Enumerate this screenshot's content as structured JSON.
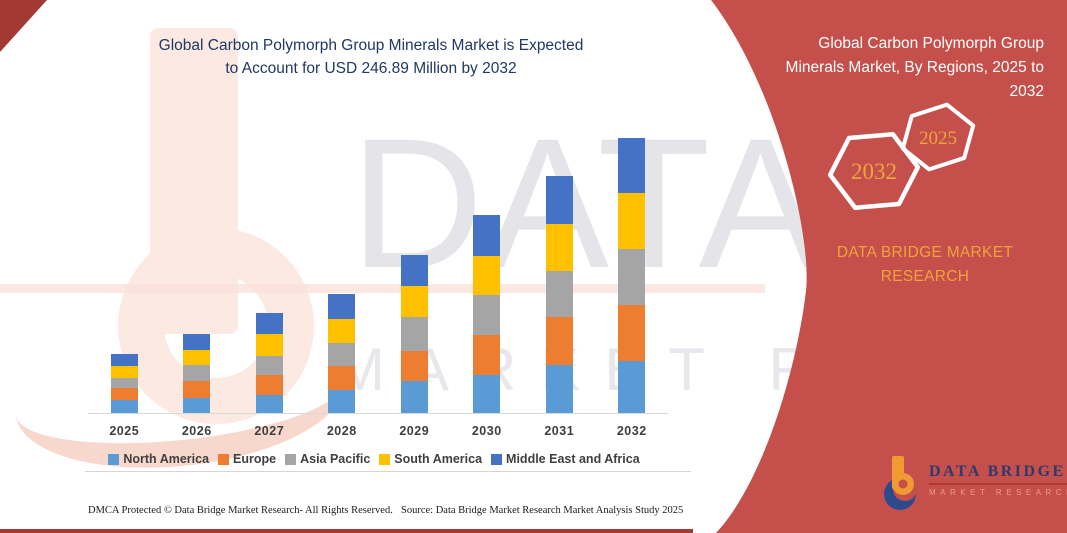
{
  "title": {
    "line1": "Global Carbon Polymorph Group Minerals Market is Expected",
    "line2": "to Account for USD 246.89 Million by 2032",
    "color": "#1F3864"
  },
  "chart_data": {
    "type": "bar",
    "stacked": true,
    "unit": "USD Million",
    "categories": [
      "2025",
      "2026",
      "2027",
      "2028",
      "2029",
      "2030",
      "2031",
      "2032"
    ],
    "series": [
      {
        "name": "North America",
        "color": "#5B9BD5",
        "values": [
          11.7,
          13.5,
          16.4,
          20.9,
          28.5,
          34.4,
          43.1,
          46.4
        ]
      },
      {
        "name": "Europe",
        "color": "#ED7D31",
        "values": [
          10.8,
          15.0,
          18.0,
          20.9,
          26.9,
          35.9,
          42.8,
          50.9
        ]
      },
      {
        "name": "Asia Pacific",
        "color": "#A5A5A5",
        "values": [
          9.0,
          15.0,
          16.8,
          20.9,
          30.8,
          35.9,
          41.9,
          50.0
        ]
      },
      {
        "name": "South America",
        "color": "#FFC000",
        "values": [
          10.8,
          12.8,
          19.5,
          21.5,
          28.1,
          34.4,
          41.9,
          50.3
        ]
      },
      {
        "name": "Middle East and Africa",
        "color": "#4472C4",
        "values": [
          10.8,
          15.0,
          18.9,
          22.7,
          27.6,
          37.4,
          42.8,
          49.3
        ]
      }
    ],
    "totals": [
      53.1,
      71.3,
      89.6,
      106.9,
      141.9,
      178.0,
      212.5,
      246.9
    ],
    "title": "Global Carbon Polymorph Group Minerals Market is Expected to Account for USD 246.89 Million by 2032",
    "xlabel": "",
    "ylabel": "",
    "y_axis_shown": false,
    "legend_position": "bottom",
    "baseline_color": "#D9D9D9"
  },
  "right_panel": {
    "bg_color": "#C5504B",
    "accent_color": "#F1A23C",
    "heading_line1": "Global Carbon Polymorph Group",
    "heading_line2": "Minerals Market, By Regions, 2025 to",
    "heading_line3": "2032",
    "hex_large_year": "2032",
    "hex_small_year": "2025",
    "brand_line1": "DATA BRIDGE MARKET",
    "brand_line2": "RESEARCH"
  },
  "logo": {
    "name": "DATA BRIDGE",
    "sub": "MARKET RESEARCH"
  },
  "footer": {
    "left": "DMCA Protected © Data Bridge Market Research-  All Rights Reserved.",
    "source": "Source: Data Bridge Market Research  Market Analysis Study 2025"
  },
  "watermark": {
    "text1": "DATA B",
    "text2": "MARKET RESEARCH"
  }
}
